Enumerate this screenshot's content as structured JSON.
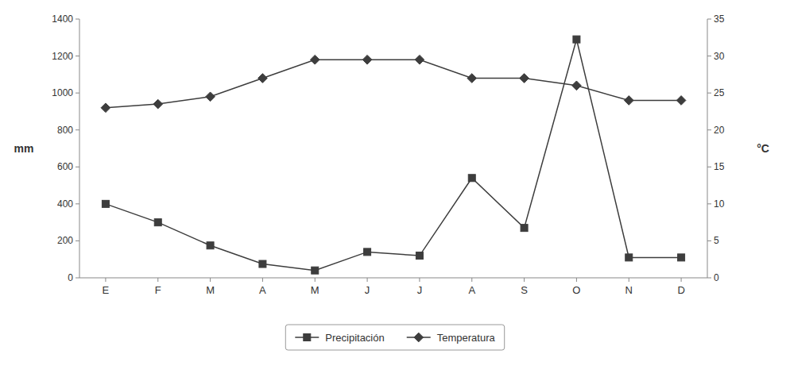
{
  "chart_data": {
    "type": "line",
    "categories": [
      "E",
      "F",
      "M",
      "A",
      "M",
      "J",
      "J",
      "A",
      "S",
      "O",
      "N",
      "D"
    ],
    "series": [
      {
        "name": "Precipitación",
        "color": "#3d3d3d",
        "marker": "square",
        "values": [
          400,
          300,
          175,
          75,
          40,
          140,
          120,
          540,
          270,
          1290,
          110,
          110
        ]
      },
      {
        "name": "Temperatura",
        "color": "#3d3d3d",
        "marker": "diamond",
        "axis": "y2",
        "values": [
          23,
          23.5,
          24.5,
          27,
          29.5,
          29.5,
          29.5,
          27,
          27,
          26,
          24,
          24
        ]
      }
    ],
    "ylabel": "mm",
    "y2label": "°C",
    "ylim": [
      0,
      1400
    ],
    "yticks": [
      0,
      200,
      400,
      600,
      800,
      1000,
      1200,
      1400
    ],
    "y2lim": [
      0,
      35
    ],
    "y2ticks": [
      0,
      5,
      10,
      15,
      20,
      25,
      30,
      35
    ],
    "grid": false,
    "legend": "bottom"
  }
}
